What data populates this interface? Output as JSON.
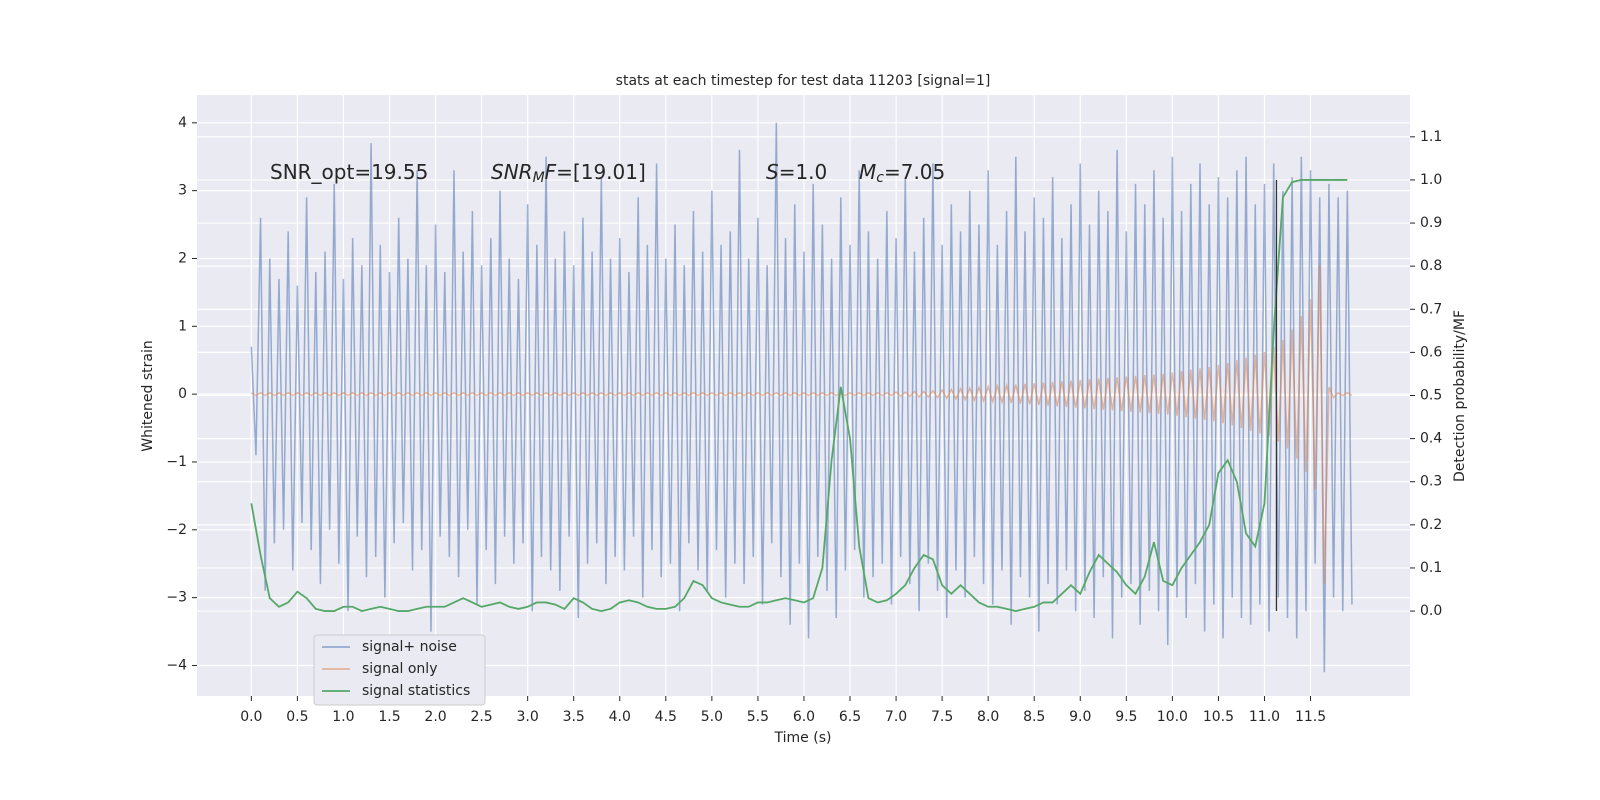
{
  "chart_data": {
    "type": "line",
    "title": "stats at each timestep for test data 11203 [signal=1]",
    "xlabel": "Time (s)",
    "ylabel": "Whitened strain",
    "y2label": "Detection probability/MF",
    "xlim": [
      -0.59,
      12.58
    ],
    "ylim": [
      -4.45,
      4.41
    ],
    "y2lim": [
      -0.197,
      1.197
    ],
    "grid": true,
    "legend": "lower left",
    "xticks": [
      {
        "value": 0,
        "label": "0.0"
      },
      0.5,
      {
        "value": 1,
        "label": "1.0"
      },
      1.5,
      {
        "value": 2,
        "label": "2.0"
      },
      2.5,
      {
        "value": 3,
        "label": "3.0"
      },
      3.5,
      {
        "value": 4,
        "label": "4.0"
      },
      4.5,
      {
        "value": 5,
        "label": "5.0"
      },
      5.5,
      {
        "value": 6,
        "label": "6.0"
      },
      6.5,
      {
        "value": 7,
        "label": "7.0"
      },
      7.5,
      {
        "value": 8,
        "label": "8.0"
      },
      8.5,
      {
        "value": 9,
        "label": "9.0"
      },
      9.5,
      {
        "value": 10,
        "label": "10.0"
      },
      10.5,
      {
        "value": 11,
        "label": "11.0"
      },
      11.5
    ],
    "yticks": [
      {
        "value": -4,
        "label": "−4"
      },
      {
        "value": -3,
        "label": "−3"
      },
      {
        "value": -2,
        "label": "−2"
      },
      {
        "value": -1,
        "label": "−1"
      },
      0,
      1,
      2,
      3,
      4
    ],
    "y2ticks": [
      {
        "value": 0,
        "label": "0.0"
      },
      0.1,
      0.2,
      0.3,
      0.4,
      0.5,
      0.6,
      0.7,
      0.8,
      0.9,
      {
        "value": 1,
        "label": "1.0"
      },
      1.1
    ],
    "vline_x": 11.13,
    "annotations": [
      [
        {
          "t": "SNR_opt=19.55",
          "s": ""
        }
      ],
      [
        {
          "t": "SNR",
          "s": "i"
        },
        {
          "t": "M",
          "s": "sub"
        },
        {
          "t": "F",
          "s": "i"
        },
        {
          "t": "=[19.01]",
          "s": ""
        }
      ],
      [
        {
          "t": "S",
          "s": "i"
        },
        {
          "t": "=1.0",
          "s": ""
        }
      ],
      [
        {
          "t": "M",
          "s": "i"
        },
        {
          "t": "c",
          "s": "sub"
        },
        {
          "t": "=7.05",
          "s": ""
        }
      ]
    ],
    "x": [
      0,
      0.05,
      0.1,
      0.15,
      0.2,
      0.25,
      0.3,
      0.35,
      0.4,
      0.45,
      0.5,
      0.55,
      0.6,
      0.65,
      0.7,
      0.75,
      0.8,
      0.85,
      0.9,
      0.95,
      1,
      1.05,
      1.1,
      1.15,
      1.2,
      1.25,
      1.3,
      1.35,
      1.4,
      1.45,
      1.5,
      1.55,
      1.6,
      1.65,
      1.7,
      1.75,
      1.8,
      1.85,
      1.9,
      1.95,
      2,
      2.05,
      2.1,
      2.15,
      2.2,
      2.25,
      2.3,
      2.35,
      2.4,
      2.45,
      2.5,
      2.55,
      2.6,
      2.65,
      2.7,
      2.75,
      2.8,
      2.85,
      2.9,
      2.95,
      3,
      3.05,
      3.1,
      3.15,
      3.2,
      3.25,
      3.3,
      3.35,
      3.4,
      3.45,
      3.5,
      3.55,
      3.6,
      3.65,
      3.7,
      3.75,
      3.8,
      3.85,
      3.9,
      3.95,
      4,
      4.05,
      4.1,
      4.15,
      4.2,
      4.25,
      4.3,
      4.35,
      4.4,
      4.45,
      4.5,
      4.55,
      4.6,
      4.65,
      4.7,
      4.75,
      4.8,
      4.85,
      4.9,
      4.95,
      5,
      5.05,
      5.1,
      5.15,
      5.2,
      5.25,
      5.3,
      5.35,
      5.4,
      5.45,
      5.5,
      5.55,
      5.6,
      5.65,
      5.7,
      5.75,
      5.8,
      5.85,
      5.9,
      5.95,
      6,
      6.05,
      6.1,
      6.15,
      6.2,
      6.25,
      6.3,
      6.35,
      6.4,
      6.45,
      6.5,
      6.55,
      6.6,
      6.65,
      6.7,
      6.75,
      6.8,
      6.85,
      6.9,
      6.95,
      7,
      7.05,
      7.1,
      7.15,
      7.2,
      7.25,
      7.3,
      7.35,
      7.4,
      7.45,
      7.5,
      7.55,
      7.6,
      7.65,
      7.7,
      7.75,
      7.8,
      7.85,
      7.9,
      7.95,
      8,
      8.05,
      8.1,
      8.15,
      8.2,
      8.25,
      8.3,
      8.35,
      8.4,
      8.45,
      8.5,
      8.55,
      8.6,
      8.65,
      8.7,
      8.75,
      8.8,
      8.85,
      8.9,
      8.95,
      9,
      9.05,
      9.1,
      9.15,
      9.2,
      9.25,
      9.3,
      9.35,
      9.4,
      9.45,
      9.5,
      9.55,
      9.6,
      9.65,
      9.7,
      9.75,
      9.8,
      9.85,
      9.9,
      9.95,
      10,
      10.05,
      10.1,
      10.15,
      10.2,
      10.25,
      10.3,
      10.35,
      10.4,
      10.45,
      10.5,
      10.55,
      10.6,
      10.65,
      10.7,
      10.75,
      10.8,
      10.85,
      10.9,
      10.95,
      11,
      11.05,
      11.1,
      11.15,
      11.2,
      11.25,
      11.3,
      11.35,
      11.4,
      11.45,
      11.5,
      11.55,
      11.6,
      11.65,
      11.7,
      11.75,
      11.8,
      11.85,
      11.9,
      11.95
    ],
    "series": [
      {
        "name": "signal+ noise",
        "color": "#4c72b0",
        "values": [
          0.7,
          -0.9,
          2.6,
          -2.9,
          2.0,
          -2.2,
          1.7,
          -2.0,
          2.4,
          -2.6,
          1.6,
          -1.9,
          2.9,
          -2.3,
          1.8,
          -2.8,
          2.1,
          -2.0,
          3.1,
          -2.5,
          1.7,
          -3.2,
          2.3,
          -2.1,
          1.9,
          -2.7,
          3.7,
          -2.4,
          2.2,
          -3.0,
          1.8,
          -2.2,
          2.6,
          -1.9,
          2.0,
          -2.6,
          3.3,
          -2.3,
          1.9,
          -3.5,
          2.5,
          -2.1,
          1.8,
          -2.4,
          3.3,
          -2.7,
          2.1,
          -2.0,
          2.7,
          -3.1,
          1.9,
          -2.3,
          2.3,
          -2.8,
          3.0,
          -2.1,
          2.0,
          -2.5,
          1.7,
          -2.2,
          2.8,
          -3.2,
          2.2,
          -2.4,
          3.5,
          -2.6,
          2.0,
          -2.9,
          2.4,
          -2.1,
          1.9,
          -3.3,
          2.6,
          -2.5,
          2.1,
          -2.2,
          3.2,
          -2.8,
          2.0,
          -2.4,
          2.3,
          -2.6,
          1.8,
          -2.1,
          2.9,
          -3.0,
          2.2,
          -2.3,
          3.4,
          -2.7,
          2.0,
          -2.5,
          2.5,
          -3.2,
          1.9,
          -2.2,
          2.7,
          -2.6,
          2.1,
          -2.9,
          3.0,
          -2.3,
          2.2,
          -3.0,
          2.4,
          -2.5,
          3.6,
          -2.8,
          2.0,
          -2.4,
          2.6,
          -3.1,
          1.9,
          -2.2,
          4.0,
          -2.7,
          2.3,
          -3.4,
          2.8,
          -2.5,
          2.1,
          -3.6,
          3.1,
          -2.4,
          2.5,
          -2.9,
          2.0,
          -3.3,
          2.9,
          -2.6,
          2.2,
          -2.3,
          3.3,
          -3.0,
          2.4,
          -2.7,
          2.0,
          -2.5,
          2.7,
          -3.1,
          2.3,
          -2.4,
          3.2,
          -2.8,
          2.1,
          -3.2,
          2.6,
          -2.5,
          3.4,
          -2.9,
          2.2,
          -3.3,
          2.8,
          -2.6,
          2.4,
          -3.0,
          3.0,
          -2.4,
          2.5,
          -2.8,
          3.3,
          -3.1,
          2.2,
          -2.6,
          2.7,
          -3.4,
          3.5,
          -2.7,
          2.4,
          -3.0,
          2.9,
          -3.5,
          2.6,
          -2.8,
          3.2,
          -3.1,
          2.3,
          -2.6,
          2.8,
          -3.2,
          3.4,
          -2.9,
          2.5,
          -3.3,
          3.0,
          -2.7,
          2.7,
          -3.6,
          3.6,
          -3.0,
          2.4,
          -2.8,
          3.1,
          -3.4,
          2.8,
          -2.9,
          3.3,
          -3.2,
          2.6,
          -3.7,
          3.5,
          -3.0,
          2.7,
          -3.3,
          3.1,
          -2.8,
          3.4,
          -3.5,
          2.8,
          -3.1,
          3.2,
          -3.6,
          2.9,
          -3.0,
          3.3,
          -3.3,
          3.5,
          -3.4,
          2.8,
          -3.1,
          3.1,
          -3.5,
          3.4,
          -3.0,
          3.0,
          -3.3,
          3.2,
          -3.6,
          3.5,
          -3.2,
          3.3,
          -2.5,
          2.9,
          -4.1,
          3.1,
          -3.0,
          2.9,
          -3.2,
          3.0,
          -3.1
        ]
      },
      {
        "name": "signal only",
        "color": "#dd8452",
        "values": [
          0.02,
          -0.02,
          0.02,
          -0.02,
          0.02,
          -0.02,
          0.02,
          -0.02,
          0.02,
          -0.02,
          0.02,
          -0.02,
          0.02,
          -0.02,
          0.02,
          -0.02,
          0.02,
          -0.02,
          0.02,
          -0.02,
          0.02,
          -0.02,
          0.02,
          -0.02,
          0.02,
          -0.02,
          0.02,
          -0.02,
          0.02,
          -0.02,
          0.02,
          -0.02,
          0.02,
          -0.02,
          0.02,
          -0.02,
          0.02,
          -0.02,
          0.02,
          -0.02,
          0.02,
          -0.02,
          0.02,
          -0.02,
          0.02,
          -0.02,
          0.02,
          -0.02,
          0.02,
          -0.02,
          0.02,
          -0.02,
          0.02,
          -0.02,
          0.02,
          -0.02,
          0.02,
          -0.02,
          0.02,
          -0.02,
          0.02,
          -0.02,
          0.02,
          -0.02,
          0.02,
          -0.02,
          0.02,
          -0.02,
          0.02,
          -0.02,
          0.02,
          -0.02,
          0.02,
          -0.02,
          0.02,
          -0.02,
          0.02,
          -0.02,
          0.02,
          -0.02,
          0.02,
          -0.02,
          0.02,
          -0.02,
          0.02,
          -0.02,
          0.02,
          -0.02,
          0.02,
          -0.02,
          0.02,
          -0.02,
          0.02,
          -0.02,
          0.02,
          -0.02,
          0.02,
          -0.02,
          0.02,
          -0.02,
          0.02,
          -0.02,
          0.02,
          -0.02,
          0.02,
          -0.02,
          0.02,
          -0.02,
          0.02,
          -0.02,
          0.02,
          -0.02,
          0.02,
          -0.02,
          0.02,
          -0.02,
          0.02,
          -0.02,
          0.02,
          -0.02,
          0.02,
          -0.02,
          0.02,
          -0.02,
          0.02,
          -0.02,
          0.02,
          -0.02,
          0.02,
          -0.02,
          0.02,
          -0.02,
          0.02,
          -0.02,
          0.02,
          -0.02,
          0.02,
          -0.02,
          0.02,
          -0.02,
          0.03,
          -0.03,
          0.03,
          -0.03,
          0.04,
          -0.04,
          0.04,
          -0.04,
          0.05,
          -0.05,
          0.06,
          -0.06,
          0.07,
          -0.07,
          0.08,
          -0.08,
          0.09,
          -0.09,
          0.1,
          -0.1,
          0.11,
          -0.11,
          0.12,
          -0.12,
          0.13,
          -0.13,
          0.14,
          -0.14,
          0.15,
          -0.15,
          0.16,
          -0.16,
          0.17,
          -0.17,
          0.18,
          -0.18,
          0.19,
          -0.19,
          0.2,
          -0.2,
          0.21,
          -0.21,
          0.22,
          -0.22,
          0.23,
          -0.23,
          0.24,
          -0.24,
          0.25,
          -0.25,
          0.26,
          -0.26,
          0.27,
          -0.27,
          0.28,
          -0.28,
          0.29,
          -0.29,
          0.3,
          -0.3,
          0.32,
          -0.32,
          0.34,
          -0.34,
          0.36,
          -0.36,
          0.38,
          -0.38,
          0.4,
          -0.4,
          0.43,
          -0.43,
          0.46,
          -0.46,
          0.5,
          -0.5,
          0.54,
          -0.54,
          0.58,
          -0.58,
          0.62,
          -0.62,
          0.7,
          -0.7,
          0.8,
          -0.8,
          0.95,
          -0.95,
          1.15,
          -1.15,
          1.4,
          -1.4,
          1.9,
          -2.8,
          0.1,
          -0.05,
          0.02,
          -0.02,
          0.02,
          -0.02
        ]
      },
      {
        "name": "signal statistics",
        "color": "#55a868",
        "axis": "y2",
        "x": [
          0,
          0.1,
          0.2,
          0.3,
          0.4,
          0.5,
          0.6,
          0.7,
          0.8,
          0.9,
          1,
          1.1,
          1.2,
          1.3,
          1.4,
          1.5,
          1.6,
          1.7,
          1.8,
          1.9,
          2,
          2.1,
          2.2,
          2.3,
          2.4,
          2.5,
          2.6,
          2.7,
          2.8,
          2.9,
          3,
          3.1,
          3.2,
          3.3,
          3.4,
          3.5,
          3.6,
          3.7,
          3.8,
          3.9,
          4,
          4.1,
          4.2,
          4.3,
          4.4,
          4.5,
          4.6,
          4.7,
          4.8,
          4.9,
          5,
          5.1,
          5.2,
          5.3,
          5.4,
          5.5,
          5.6,
          5.7,
          5.8,
          5.9,
          6,
          6.1,
          6.2,
          6.3,
          6.4,
          6.5,
          6.6,
          6.7,
          6.8,
          6.9,
          7,
          7.1,
          7.2,
          7.3,
          7.4,
          7.5,
          7.6,
          7.7,
          7.8,
          7.9,
          8,
          8.1,
          8.2,
          8.3,
          8.4,
          8.5,
          8.6,
          8.7,
          8.8,
          8.9,
          9,
          9.1,
          9.2,
          9.3,
          9.4,
          9.5,
          9.6,
          9.7,
          9.8,
          9.9,
          10,
          10.1,
          10.2,
          10.3,
          10.4,
          10.5,
          10.6,
          10.7,
          10.8,
          10.9,
          11,
          11.1,
          11.2,
          11.3,
          11.4,
          11.5,
          11.6,
          11.7,
          11.8,
          11.9
        ],
        "values": [
          0.25,
          0.13,
          0.03,
          0.01,
          0.02,
          0.045,
          0.03,
          0.005,
          0,
          0,
          0.01,
          0.01,
          0,
          0.005,
          0.01,
          0.005,
          0,
          0,
          0.005,
          0.01,
          0.01,
          0.01,
          0.02,
          0.03,
          0.02,
          0.01,
          0.015,
          0.02,
          0.01,
          0.005,
          0.01,
          0.02,
          0.02,
          0.015,
          0.005,
          0.03,
          0.02,
          0.005,
          0,
          0.005,
          0.02,
          0.025,
          0.02,
          0.01,
          0.005,
          0.005,
          0.01,
          0.03,
          0.07,
          0.06,
          0.03,
          0.02,
          0.015,
          0.01,
          0.01,
          0.02,
          0.02,
          0.025,
          0.03,
          0.025,
          0.02,
          0.03,
          0.1,
          0.35,
          0.52,
          0.4,
          0.15,
          0.03,
          0.02,
          0.025,
          0.04,
          0.06,
          0.1,
          0.13,
          0.12,
          0.06,
          0.04,
          0.06,
          0.04,
          0.02,
          0.01,
          0.01,
          0.005,
          0,
          0.005,
          0.01,
          0.02,
          0.02,
          0.04,
          0.06,
          0.04,
          0.09,
          0.13,
          0.11,
          0.09,
          0.06,
          0.04,
          0.08,
          0.16,
          0.07,
          0.06,
          0.1,
          0.13,
          0.16,
          0.2,
          0.32,
          0.35,
          0.3,
          0.18,
          0.15,
          0.25,
          0.65,
          0.96,
          0.995,
          1,
          1,
          1,
          1,
          1,
          1
        ]
      }
    ]
  }
}
